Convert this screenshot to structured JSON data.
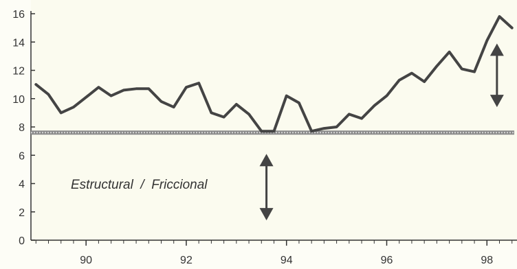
{
  "chart_data": {
    "type": "line",
    "title": "",
    "xlabel": "",
    "ylabel": "",
    "xlim": [
      88.9,
      98.6
    ],
    "ylim": [
      0,
      16
    ],
    "x_ticks": [
      90,
      92,
      94,
      96,
      98
    ],
    "y_ticks": [
      0,
      2,
      4,
      6,
      8,
      10,
      12,
      14,
      16
    ],
    "grid": false,
    "series": [
      {
        "name": "",
        "color": "#444444",
        "x": [
          89.0,
          89.25,
          89.5,
          89.75,
          90.0,
          90.25,
          90.5,
          90.75,
          91.0,
          91.25,
          91.5,
          91.75,
          92.0,
          92.25,
          92.5,
          92.75,
          93.0,
          93.25,
          93.5,
          93.75,
          94.0,
          94.25,
          94.5,
          94.75,
          95.0,
          95.25,
          95.5,
          95.75,
          96.0,
          96.25,
          96.5,
          96.75,
          97.0,
          97.25,
          97.5,
          97.75,
          98.0,
          98.25,
          98.5
        ],
        "y": [
          11.0,
          10.3,
          9.0,
          9.4,
          10.1,
          10.8,
          10.2,
          10.6,
          10.7,
          10.7,
          9.8,
          9.4,
          10.8,
          11.1,
          9.0,
          8.7,
          9.6,
          8.9,
          7.7,
          7.7,
          10.2,
          9.7,
          7.7,
          7.9,
          8.0,
          8.9,
          8.6,
          9.5,
          10.2,
          11.3,
          11.8,
          11.2,
          12.3,
          13.3,
          12.1,
          11.9,
          14.1,
          15.8,
          15.0
        ]
      }
    ],
    "reference_line": {
      "y": 7.6,
      "color": "#8a8a8a"
    },
    "annotations": {
      "label": "Estructural  /  Friccional"
    },
    "double_arrows": [
      {
        "x": 93.6,
        "y_from": 1.4,
        "y_to": 6.1
      },
      {
        "x": 98.2,
        "y_from": 9.4,
        "y_to": 13.9
      }
    ]
  }
}
